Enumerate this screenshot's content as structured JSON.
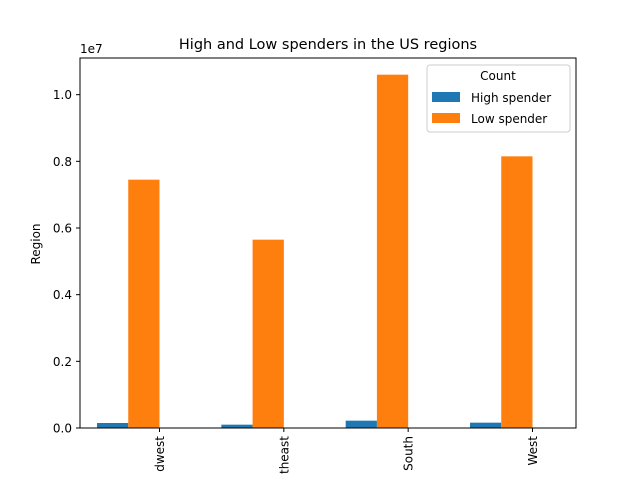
{
  "chart_data": {
    "type": "bar",
    "title": "High and Low spenders in the US regions",
    "ylabel": "Region",
    "xlabel": "",
    "y_multiplier_label": "1e7",
    "categories": [
      "Midwest",
      "Northeast",
      "South",
      "West"
    ],
    "categories_visible": [
      "dwest",
      "theast",
      "South",
      "West"
    ],
    "y_scale": 10000000,
    "ylim": [
      0,
      11100000
    ],
    "yticks": [
      0,
      2000000,
      4000000,
      6000000,
      8000000,
      10000000
    ],
    "ytick_labels": [
      "0.0",
      "0.2",
      "0.4",
      "0.6",
      "0.8",
      "1.0"
    ],
    "grid": false,
    "legend": {
      "title": "Count",
      "placement": "top-right"
    },
    "series": [
      {
        "name": "High spender",
        "color": "#1f77b4",
        "values": [
          150000,
          100000,
          220000,
          160000
        ]
      },
      {
        "name": "Low spender",
        "color": "#ff7f0e",
        "values": [
          7450000,
          5650000,
          10600000,
          8150000
        ]
      }
    ]
  }
}
